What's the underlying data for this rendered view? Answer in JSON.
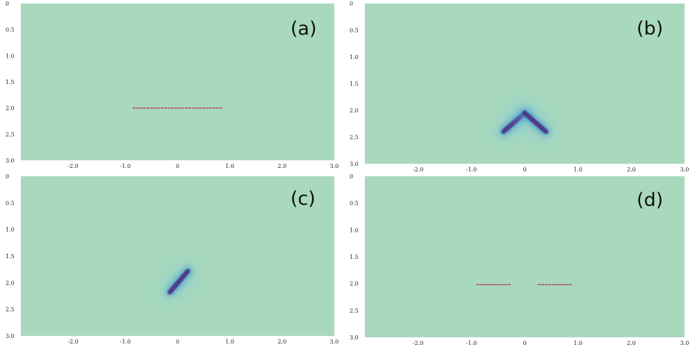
{
  "colors": {
    "background": "#a9d9bd",
    "halo": "#7fc8d8",
    "glow": "#3f8fd0",
    "core": "#2b2f88",
    "crack": "#b0306a"
  },
  "chart_data": [
    {
      "type": "heatmap",
      "panel_label": "(a)",
      "xlim": [
        -3.0,
        3.0
      ],
      "ylim": [
        0,
        3.0
      ],
      "y_axis_inverted": true,
      "xticks": [
        -2.0,
        -1.0,
        0,
        1.0,
        2.0,
        3.0
      ],
      "xtick_labels": [
        "-2.0",
        "-1.0",
        "0",
        "1.0",
        "2.0",
        "3.0"
      ],
      "yticks": [
        0,
        0.5,
        1.0,
        1.5,
        2.0,
        2.5,
        3.0
      ],
      "ytick_labels": [
        "0",
        "0.5",
        "1.0",
        "1.5",
        "2.0",
        "2.5",
        "3.0"
      ],
      "cracks": [
        {
          "x1": -0.85,
          "y1": 2.0,
          "x2": 0.85,
          "y2": 2.0
        }
      ]
    },
    {
      "type": "heatmap",
      "panel_label": "(b)",
      "xlim": [
        -3.0,
        3.0
      ],
      "ylim": [
        0,
        3.0
      ],
      "y_axis_inverted": true,
      "xticks": [
        -2.0,
        -1.0,
        0,
        1.0,
        2.0,
        3.0
      ],
      "xtick_labels": [
        "-2.0",
        "-1.0",
        "0",
        "1.0",
        "2.0",
        "3.0"
      ],
      "yticks": [
        0,
        0.5,
        1.0,
        1.5,
        2.0,
        2.5,
        3.0
      ],
      "ytick_labels": [
        "0",
        "0.5",
        "1.0",
        "1.5",
        "2.0",
        "2.5",
        "3.0"
      ],
      "cracks": [
        {
          "x1": -0.4,
          "y1": 2.4,
          "x2": 0.0,
          "y2": 2.05
        },
        {
          "x1": 0.0,
          "y1": 2.05,
          "x2": 0.4,
          "y2": 2.4
        }
      ]
    },
    {
      "type": "heatmap",
      "panel_label": "(c)",
      "xlim": [
        -3.0,
        3.0
      ],
      "ylim": [
        0,
        3.0
      ],
      "y_axis_inverted": true,
      "xticks": [
        -2.0,
        -1.0,
        0,
        1.0,
        2.0,
        3.0
      ],
      "xtick_labels": [
        "-2.0",
        "-1.0",
        "0",
        "1.0",
        "2.0",
        "3.0"
      ],
      "yticks": [
        0,
        0.5,
        1.0,
        1.5,
        2.0,
        2.5,
        3.0
      ],
      "ytick_labels": [
        "0",
        "0.5",
        "1.0",
        "1.5",
        "2.0",
        "2.5",
        "3.0"
      ],
      "cracks": [
        {
          "x1": -0.15,
          "y1": 2.18,
          "x2": 0.2,
          "y2": 1.78
        }
      ]
    },
    {
      "type": "heatmap",
      "panel_label": "(d)",
      "xlim": [
        -3.0,
        3.0
      ],
      "ylim": [
        0,
        3.0
      ],
      "y_axis_inverted": true,
      "xticks": [
        -2.0,
        -1.0,
        0,
        1.0,
        2.0,
        3.0
      ],
      "xtick_labels": [
        "-2.0",
        "-1.0",
        "0",
        "1.0",
        "2.0",
        "3.0"
      ],
      "yticks": [
        0,
        0.5,
        1.0,
        1.5,
        2.0,
        2.5,
        3.0
      ],
      "ytick_labels": [
        "0",
        "0.5",
        "1.0",
        "1.5",
        "2.0",
        "2.5",
        "3.0"
      ],
      "cracks": [
        {
          "x1": -0.9,
          "y1": 2.02,
          "x2": -0.25,
          "y2": 2.02
        },
        {
          "x1": 0.25,
          "y1": 2.02,
          "x2": 0.9,
          "y2": 2.02
        }
      ]
    }
  ]
}
